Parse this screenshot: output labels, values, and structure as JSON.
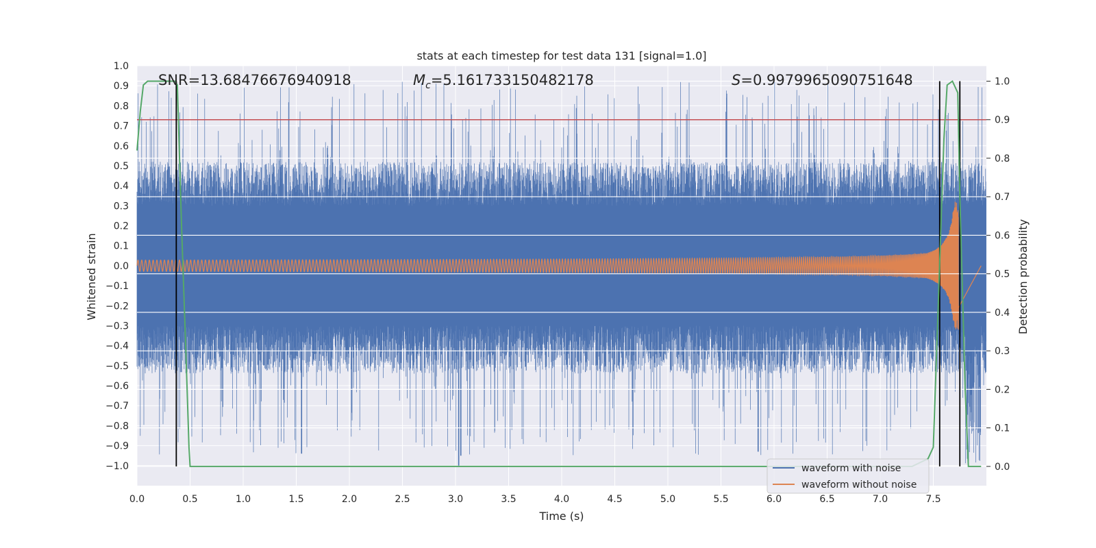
{
  "chart_data": {
    "type": "line",
    "title": "stats at each timestep for test data 131 [signal=1.0]",
    "xlabel": "Time (s)",
    "ylabel": "Whitened strain",
    "ylabel_right": "Detection probability",
    "xlim": [
      0.0,
      8.0
    ],
    "ylim": [
      -1.1,
      1.0
    ],
    "ylim_right": [
      -0.05,
      1.04
    ],
    "x_ticks": [
      "0.0",
      "0.5",
      "1.0",
      "1.5",
      "2.0",
      "2.5",
      "3.0",
      "3.5",
      "4.0",
      "4.5",
      "5.0",
      "5.5",
      "6.0",
      "6.5",
      "7.0",
      "7.5"
    ],
    "y_ticks": [
      "1.0",
      "0.9",
      "0.8",
      "0.7",
      "0.6",
      "0.5",
      "0.4",
      "0.3",
      "0.2",
      "0.1",
      "0.0",
      "−0.1",
      "−0.2",
      "−0.3",
      "−0.4",
      "−0.5",
      "−0.6",
      "−0.7",
      "−0.8",
      "−0.9",
      "−1.0"
    ],
    "y_right_ticks": [
      "1.0",
      "0.9",
      "0.8",
      "0.7",
      "0.6",
      "0.5",
      "0.4",
      "0.3",
      "0.2",
      "0.1",
      "0.0"
    ],
    "annotations": {
      "snr": "SNR=13.68476676940918",
      "mc_symbol": "M",
      "mc_sub": "c",
      "mc_value": "=5.161733150482178",
      "s_symbol": "S",
      "s_value": "=0.9979965090751648"
    },
    "threshold": 0.9,
    "vertical_lines": [
      0.37,
      7.56,
      7.75
    ],
    "series": [
      {
        "name": "waveform with noise",
        "color": "#4c72b0",
        "envelope": 0.3,
        "peak_max": 0.92,
        "peak_min": -1.0
      },
      {
        "name": "waveform without noise",
        "color": "#dd8452",
        "start_amplitude": 0.028,
        "merger_time": 7.74,
        "peak": 0.32
      },
      {
        "name": "detection probability",
        "color": "#55a868",
        "points": [
          [
            0.0,
            0.82
          ],
          [
            0.03,
            0.92
          ],
          [
            0.06,
            0.99
          ],
          [
            0.1,
            1.0
          ],
          [
            0.36,
            1.0
          ],
          [
            0.38,
            0.99
          ],
          [
            0.42,
            0.62
          ],
          [
            0.46,
            0.3
          ],
          [
            0.49,
            0.05
          ],
          [
            0.5,
            0.0
          ],
          [
            7.3,
            0.0
          ],
          [
            7.45,
            0.02
          ],
          [
            7.5,
            0.05
          ],
          [
            7.55,
            0.45
          ],
          [
            7.6,
            0.85
          ],
          [
            7.63,
            0.99
          ],
          [
            7.68,
            1.0
          ],
          [
            7.73,
            0.97
          ],
          [
            7.75,
            0.7
          ],
          [
            7.8,
            0.2
          ],
          [
            7.83,
            0.0
          ],
          [
            7.95,
            0.0
          ]
        ]
      }
    ],
    "threshold_color": "#c44e52",
    "legend_position": "lower-right",
    "grid": true
  }
}
